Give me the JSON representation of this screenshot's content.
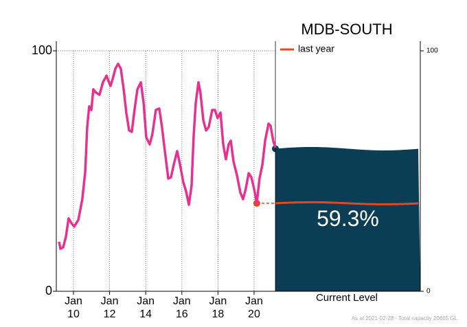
{
  "chart_data": {
    "type": "line",
    "title": "MDB-SOUTH",
    "footnote": "As at 2021-02-28 - Total capacity 20665 GL",
    "xlim": [
      2009.05,
      2021.18
    ],
    "ylim": [
      0,
      100
    ],
    "yticks": [
      0,
      100
    ],
    "y2lim": [
      0,
      100
    ],
    "y2ticks": [
      0,
      100
    ],
    "xticks": [
      {
        "value": 2010,
        "label": "Jan\n10"
      },
      {
        "value": 2012,
        "label": "Jan\n12"
      },
      {
        "value": 2014,
        "label": "Jan\n14"
      },
      {
        "value": 2016,
        "label": "Jan\n16"
      },
      {
        "value": 2018,
        "label": "Jan\n18"
      },
      {
        "value": 2020,
        "label": "Jan\n20"
      }
    ],
    "grid": true,
    "series": [
      {
        "color": "#e8308f",
        "x": [
          2009.2,
          2009.28,
          2009.43,
          2009.58,
          2009.73,
          2009.89,
          2010.04,
          2010.27,
          2010.49,
          2010.65,
          2010.76,
          2010.87,
          2010.99,
          2011.1,
          2011.25,
          2011.44,
          2011.63,
          2011.83,
          2011.94,
          2012.05,
          2012.17,
          2012.32,
          2012.47,
          2012.62,
          2012.78,
          2012.93,
          2013.08,
          2013.23,
          2013.38,
          2013.54,
          2013.73,
          2013.88,
          2014.03,
          2014.22,
          2014.37,
          2014.56,
          2014.75,
          2014.9,
          2015.06,
          2015.25,
          2015.4,
          2015.55,
          2015.74,
          2015.89,
          2016.08,
          2016.24,
          2016.39,
          2016.54,
          2016.65,
          2016.77,
          2016.92,
          2017.03,
          2017.19,
          2017.34,
          2017.49,
          2017.68,
          2017.83,
          2017.98,
          2018.14,
          2018.29,
          2018.44,
          2018.59,
          2018.71,
          2018.86,
          2019.05,
          2019.24,
          2019.39,
          2019.54,
          2019.7,
          2019.85,
          2020.0,
          2020.15,
          2020.3,
          2020.46,
          2020.61,
          2020.8,
          2020.91,
          2021.06,
          2021.18
        ],
        "values": [
          20.6,
          17.7,
          18.3,
          22.6,
          30.3,
          28.3,
          26.9,
          29.7,
          38.3,
          49.7,
          68.3,
          76.9,
          75.4,
          84,
          82.6,
          81.7,
          86.9,
          89.7,
          87.4,
          85.4,
          88.3,
          92.6,
          94.6,
          92.6,
          84,
          74,
          66.9,
          66.3,
          75.4,
          84,
          86.9,
          78.6,
          64,
          61.1,
          65.4,
          75.4,
          76,
          68.3,
          58.3,
          46.9,
          47.4,
          52.6,
          58.3,
          53.1,
          45.4,
          41.4,
          36,
          44,
          64,
          78.3,
          86.9,
          82.6,
          71.1,
          66.9,
          68.3,
          75.4,
          75.4,
          72,
          74.3,
          61.1,
          54.9,
          61.1,
          62.6,
          54,
          48.3,
          41.1,
          38.3,
          42.6,
          49.1,
          47.4,
          42.6,
          36.6,
          46.9,
          52.6,
          62.6,
          69.7,
          68.9,
          62.6,
          59.7
        ]
      }
    ],
    "last_year": {
      "name": "last year",
      "value": 36.6,
      "x": 2020.15,
      "color": "#e8461e"
    },
    "current": {
      "label": "Current Level",
      "value": 59.3,
      "value_label": "59.3%",
      "color": "#0b3d55"
    }
  }
}
